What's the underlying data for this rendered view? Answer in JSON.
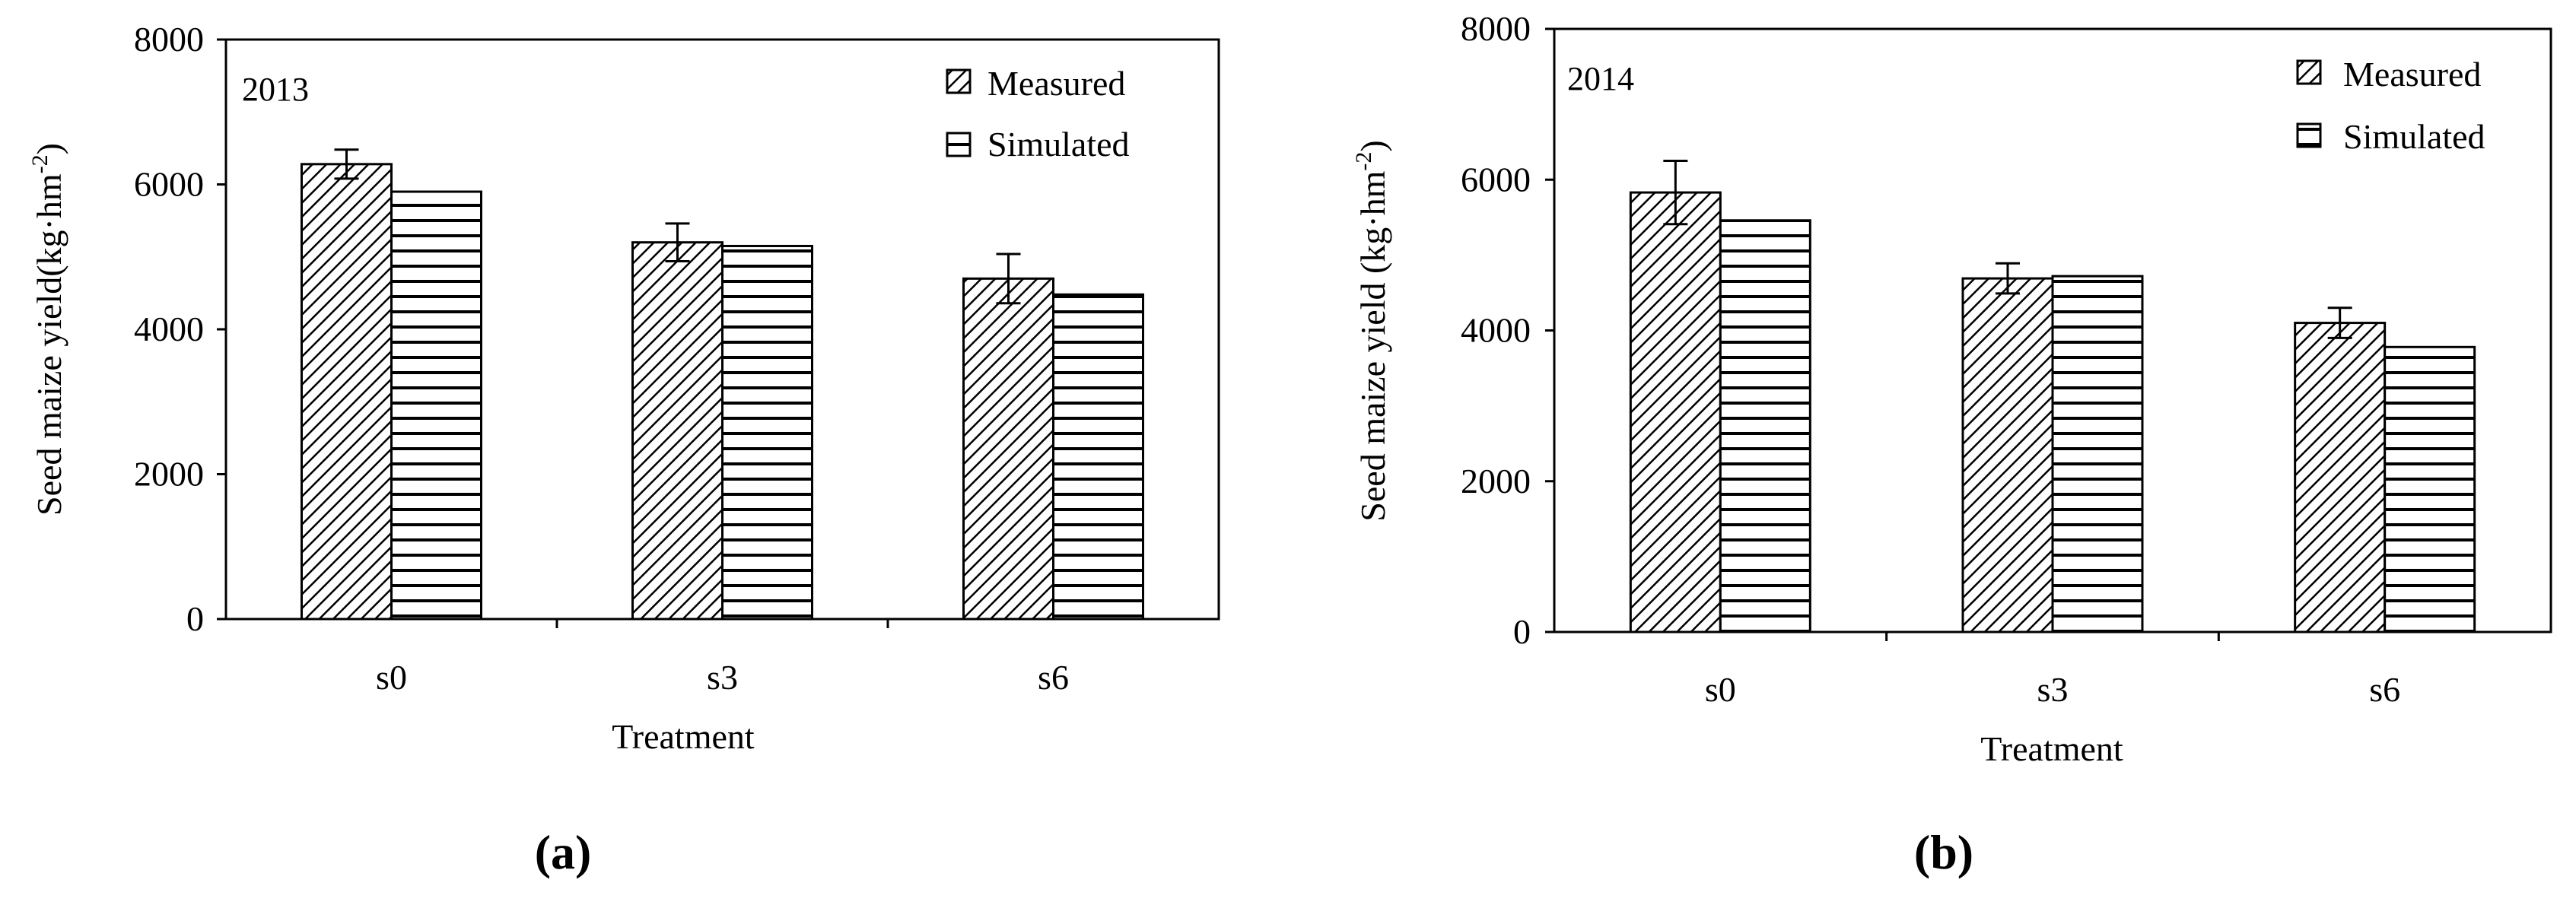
{
  "chart_data": [
    {
      "type": "bar",
      "panel_label": "(a)",
      "year_label": "2013",
      "xlabel": "Treatment",
      "ylabel_main": "Seed maize yield(kg·hm",
      "ylabel_sup": "-2",
      "ylabel_close": ")",
      "ylim": [
        0,
        8000
      ],
      "yticks": [
        0,
        2000,
        4000,
        6000,
        8000
      ],
      "categories": [
        "s0",
        "s3",
        "s6"
      ],
      "series": [
        {
          "name": "Measured",
          "values": [
            6280,
            5200,
            4700
          ],
          "errors": [
            200,
            260,
            340
          ]
        },
        {
          "name": "Simulated",
          "values": [
            5900,
            5150,
            4480
          ]
        }
      ],
      "legend_position": "top-right"
    },
    {
      "type": "bar",
      "panel_label": "(b)",
      "year_label": "2014",
      "xlabel": "Treatment",
      "ylabel_main": "Seed maize yield (kg·hm",
      "ylabel_sup": "-2",
      "ylabel_close": ")",
      "ylim": [
        0,
        8000
      ],
      "yticks": [
        0,
        2000,
        4000,
        6000,
        8000
      ],
      "categories": [
        "s0",
        "s3",
        "s6"
      ],
      "series": [
        {
          "name": "Measured",
          "values": [
            5830,
            4690,
            4100
          ],
          "errors": [
            420,
            200,
            200
          ]
        },
        {
          "name": "Simulated",
          "values": [
            5460,
            4720,
            3780
          ]
        }
      ],
      "legend_position": "top-right"
    }
  ]
}
